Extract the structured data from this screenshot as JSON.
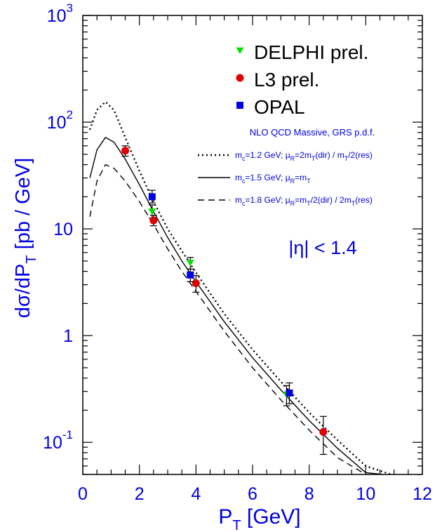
{
  "chart_data": {
    "type": "scatter",
    "title": "",
    "xlabel": {
      "main": "P",
      "sub": "T",
      "rest": " [GeV]"
    },
    "ylabel": {
      "main": "dσ/dP",
      "sub": "T",
      "rest": " [pb / GeV]"
    },
    "xlim": [
      0,
      12
    ],
    "ylim": [
      0.05,
      1000
    ],
    "yscale": "log",
    "grid": false,
    "x_ticks": [
      0,
      2,
      4,
      6,
      8,
      10,
      12
    ],
    "x_tick_labels": [
      "0",
      "2",
      "4",
      "6",
      "8",
      "10",
      "12"
    ],
    "y_ticks": [
      {
        "value": 1000,
        "base": "10",
        "exp": "3"
      },
      {
        "value": 100,
        "base": "10",
        "exp": "2"
      },
      {
        "value": 10,
        "base": "10",
        "exp": ""
      },
      {
        "value": 1,
        "base": "1",
        "exp": ""
      },
      {
        "value": 0.1,
        "base": "10",
        "exp": "-1"
      }
    ],
    "legend_position": "top-right",
    "annotation": "|η| < 1.4",
    "theory_title": "NLO QCD Massive, GRS p.d.f.",
    "series": [
      {
        "name": "DELPHI prel.",
        "marker": "triangle-down",
        "color": "#00e000",
        "points": [
          {
            "x": 2.45,
            "y": 14.5,
            "yerr": [
              12.6,
              16.8
            ]
          },
          {
            "x": 3.8,
            "y": 4.8,
            "yerr": [
              4.2,
              5.4
            ]
          },
          {
            "x": 7.2,
            "y": 0.28,
            "yerr": [
              0.22,
              0.34
            ]
          }
        ]
      },
      {
        "name": "L3 prel.",
        "marker": "circle",
        "color": "#e00000",
        "points": [
          {
            "x": 1.5,
            "y": 54,
            "yerr": [
              48,
              60
            ]
          },
          {
            "x": 2.5,
            "y": 12,
            "yerr": [
              10.7,
              13.4
            ]
          },
          {
            "x": 4.0,
            "y": 3.1,
            "yerr": [
              2.55,
              3.65
            ]
          },
          {
            "x": 8.5,
            "y": 0.125,
            "yerr": [
              0.077,
              0.175
            ]
          }
        ]
      },
      {
        "name": "OPAL",
        "marker": "square",
        "color": "#0000e0",
        "points": [
          {
            "x": 2.45,
            "y": 20,
            "yerr": [
              17.5,
              23
            ]
          },
          {
            "x": 3.8,
            "y": 3.7,
            "yerr": [
              3.2,
              4.2
            ]
          },
          {
            "x": 7.3,
            "y": 0.29,
            "yerr": [
              0.23,
              0.36
            ]
          }
        ]
      }
    ],
    "curves": [
      {
        "label": "m_c=1.2 GeV; μ_R=2m_T(dir) / m_T/2(res)",
        "style": "dotted",
        "x": [
          0.25,
          0.5,
          0.8,
          1.1,
          1.5,
          2.0,
          2.5,
          3.0,
          3.5,
          4.0,
          5.0,
          6.0,
          7.0,
          8.0,
          9.0,
          10.0,
          10.9
        ],
        "y": [
          85,
          130,
          155,
          130,
          72,
          35,
          18,
          10,
          6.2,
          3.9,
          1.6,
          0.74,
          0.37,
          0.19,
          0.105,
          0.06,
          0.05
        ]
      },
      {
        "label": "m_c=1.5 GeV; μ_R=m_T",
        "style": "solid",
        "x": [
          0.25,
          0.5,
          0.8,
          1.1,
          1.5,
          2.0,
          2.5,
          3.0,
          3.5,
          4.0,
          5.0,
          6.0,
          7.0,
          8.0,
          9.0,
          10.0,
          10.6
        ],
        "y": [
          30,
          55,
          72,
          65,
          45,
          26,
          14.5,
          8.3,
          5.0,
          3.2,
          1.35,
          0.62,
          0.31,
          0.16,
          0.088,
          0.052,
          0.05
        ]
      },
      {
        "label": "m_c=1.8 GeV; μ_R=m_T/2(dir) / 2m_T(res)",
        "style": "dashed",
        "x": [
          0.25,
          0.5,
          0.8,
          1.1,
          1.5,
          2.0,
          2.5,
          3.0,
          3.5,
          4.0,
          5.0,
          6.0,
          7.0,
          8.0,
          9.0,
          10.0
        ],
        "y": [
          13,
          28,
          40,
          37,
          28,
          18,
          11,
          6.5,
          4.0,
          2.6,
          1.1,
          0.5,
          0.25,
          0.13,
          0.072,
          0.05
        ]
      }
    ]
  },
  "legend": {
    "items": [
      {
        "label": "DELPHI prel.",
        "marker": "triangle-down",
        "color": "#00e000"
      },
      {
        "label": "L3 prel.",
        "marker": "circle",
        "color": "#e00000"
      },
      {
        "label": "OPAL",
        "marker": "square",
        "color": "#0000e0"
      }
    ],
    "theory_title": "NLO QCD Massive, GRS p.d.f.",
    "theory_lines": [
      {
        "style": "dotted",
        "parts": [
          [
            "m",
            ""
          ],
          [
            "c",
            "sub"
          ],
          [
            "=1.2 GeV; μ",
            ""
          ],
          [
            "R",
            "sub"
          ],
          [
            "=2m",
            ""
          ],
          [
            "T",
            "sub"
          ],
          [
            "(dir) / m",
            ""
          ],
          [
            "T",
            "sub"
          ],
          [
            "/2(res)",
            ""
          ]
        ]
      },
      {
        "style": "solid",
        "parts": [
          [
            "m",
            ""
          ],
          [
            "c",
            "sub"
          ],
          [
            "=1.5 GeV; μ",
            ""
          ],
          [
            "R",
            "sub"
          ],
          [
            "=m",
            ""
          ],
          [
            "T",
            "sub"
          ]
        ]
      },
      {
        "style": "dashed",
        "parts": [
          [
            "m",
            ""
          ],
          [
            "c",
            "sub"
          ],
          [
            "=1.8 GeV; μ",
            ""
          ],
          [
            "R",
            "sub"
          ],
          [
            "=m",
            ""
          ],
          [
            "T",
            "sub"
          ],
          [
            "/2(dir) / 2m",
            ""
          ],
          [
            "T",
            "sub"
          ],
          [
            "(res)",
            ""
          ]
        ]
      }
    ]
  },
  "colors": {
    "axis_label": "#0000e0",
    "frame": "#000000"
  }
}
